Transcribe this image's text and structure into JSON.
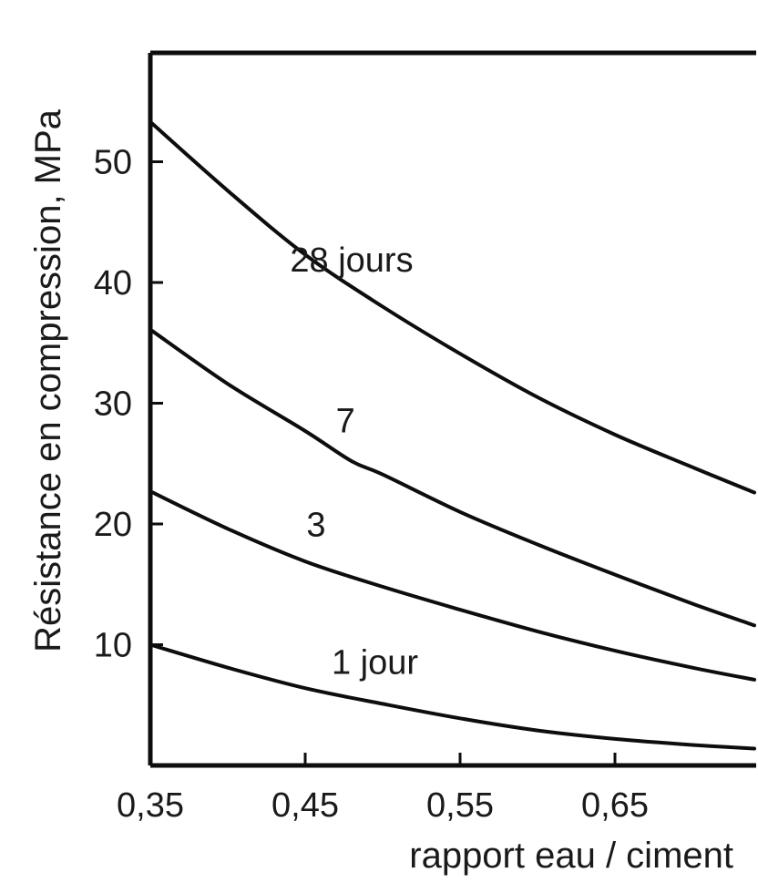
{
  "chart_data": {
    "type": "line",
    "title": "",
    "xlabel": "rapport eau / ciment",
    "ylabel": "Résistance en compression, MPa",
    "xlim": [
      0.35,
      0.74
    ],
    "ylim": [
      0,
      58
    ],
    "x_ticks": [
      0.35,
      0.45,
      0.55,
      0.65
    ],
    "x_tick_labels": [
      "0,35",
      "0,45",
      "0,55",
      "0,65"
    ],
    "y_ticks": [
      10,
      20,
      30,
      40,
      50
    ],
    "y_tick_labels": [
      "10",
      "20",
      "30",
      "40",
      "50"
    ],
    "grid": false,
    "legend": "none",
    "series": [
      {
        "label": "28 jours",
        "x": [
          0.35,
          0.4,
          0.45,
          0.5,
          0.55,
          0.6,
          0.65,
          0.7,
          0.74
        ],
        "y": [
          53.3,
          47.6,
          42.3,
          38.0,
          34.1,
          30.5,
          27.4,
          24.7,
          22.6
        ]
      },
      {
        "label": "7",
        "x": [
          0.35,
          0.4,
          0.45,
          0.48,
          0.5,
          0.55,
          0.6,
          0.65,
          0.7,
          0.74
        ],
        "y": [
          36.1,
          31.6,
          27.7,
          25.2,
          24.1,
          21.0,
          18.3,
          15.8,
          13.4,
          11.6
        ]
      },
      {
        "label": "3",
        "x": [
          0.35,
          0.4,
          0.45,
          0.5,
          0.55,
          0.6,
          0.65,
          0.7,
          0.74
        ],
        "y": [
          22.7,
          19.6,
          16.9,
          14.8,
          12.9,
          11.1,
          9.5,
          8.1,
          7.1
        ]
      },
      {
        "label": "1 jour",
        "x": [
          0.35,
          0.4,
          0.45,
          0.5,
          0.55,
          0.6,
          0.65,
          0.7,
          0.74
        ],
        "y": [
          10.0,
          8.1,
          6.4,
          5.1,
          3.9,
          2.9,
          2.2,
          1.7,
          1.4
        ]
      }
    ]
  }
}
